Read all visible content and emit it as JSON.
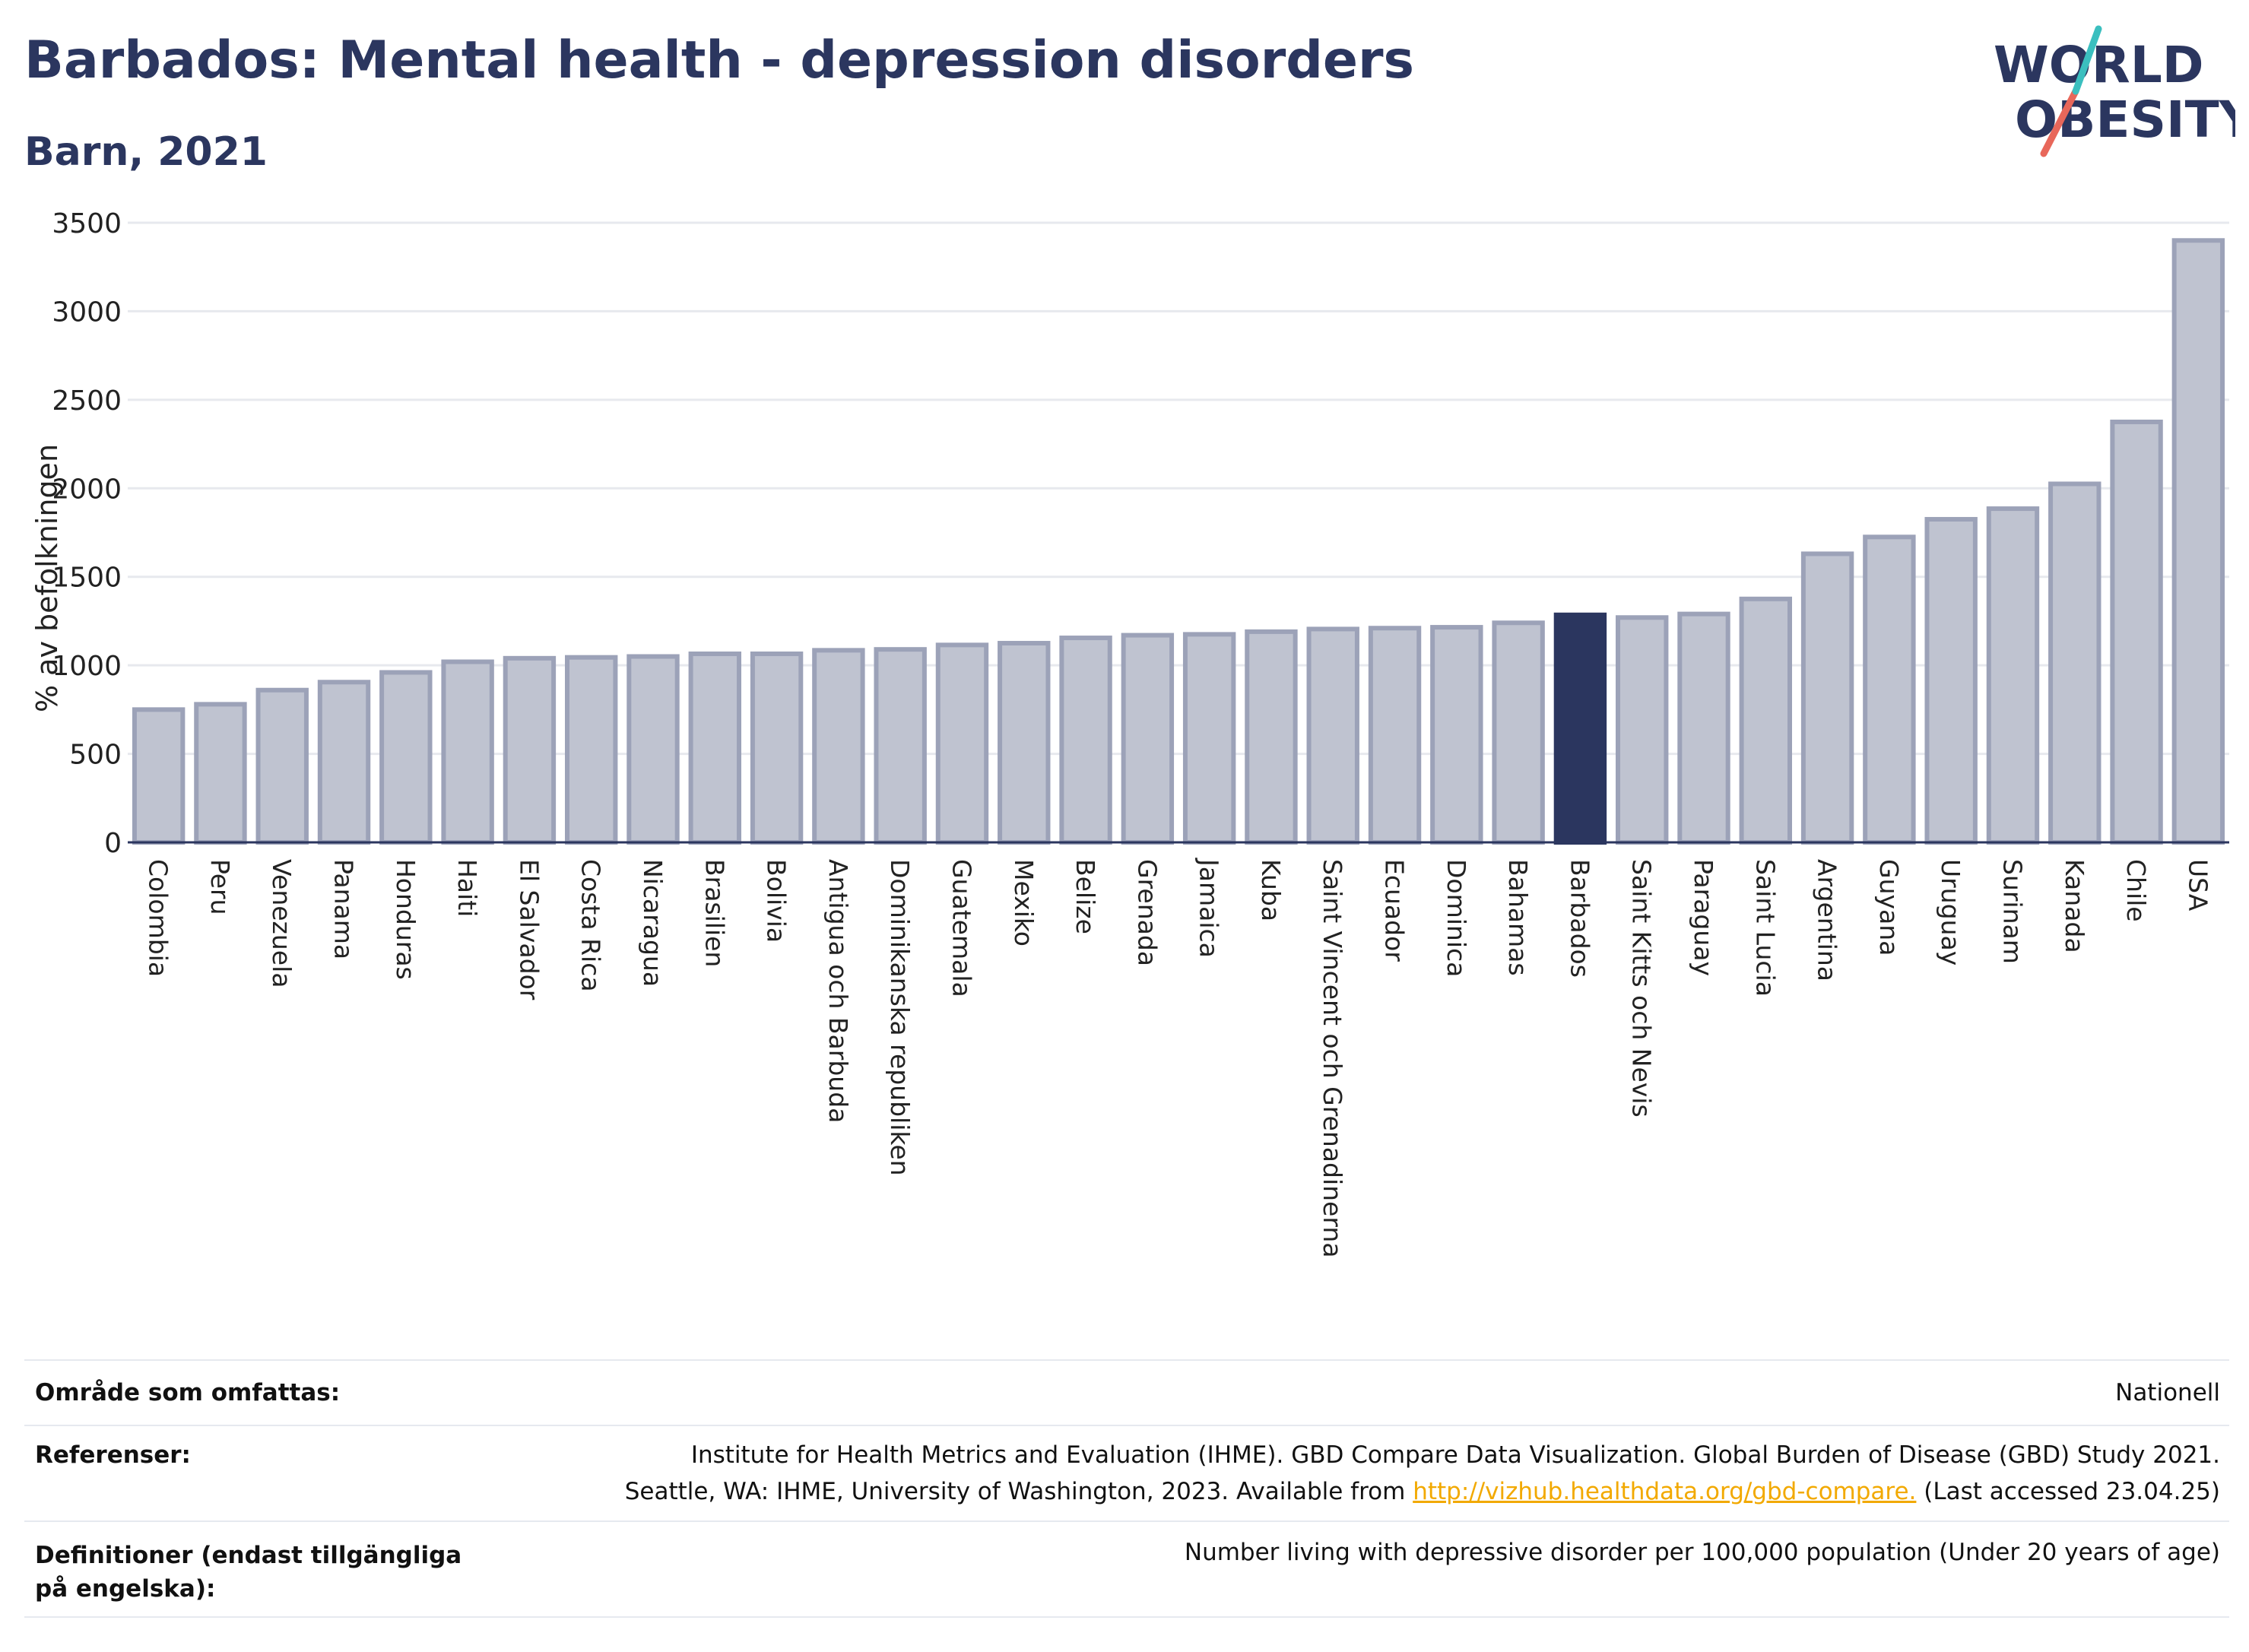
{
  "header": {
    "title": "Barbados: Mental health - depression disorders",
    "subtitle": "Barn, 2021",
    "logo_line1": "WORLD",
    "logo_line2": "OBESITY"
  },
  "colors": {
    "bar": "#bfc3d0",
    "bar_stroke": "#9ca2b8",
    "highlight": "#2b365f",
    "grid": "#e7e9ee",
    "title": "#2b365f",
    "logo_teal": "#3bbfbf",
    "logo_red": "#e8675a",
    "link": "#f2a900"
  },
  "chart_data": {
    "type": "bar",
    "title": "Barbados: Mental health - depression disorders",
    "subtitle": "Barn, 2021",
    "ylabel": "% av befolkningen",
    "xlabel": "",
    "ylim": [
      0,
      3500
    ],
    "yticks": [
      0,
      500,
      1000,
      1500,
      2000,
      2500,
      3000,
      3500
    ],
    "grid": true,
    "highlight": "Barbados",
    "categories": [
      "Colombia",
      "Peru",
      "Venezuela",
      "Panama",
      "Honduras",
      "Haiti",
      "El Salvador",
      "Costa Rica",
      "Nicaragua",
      "Brasilien",
      "Bolivia",
      "Antigua och Barbuda",
      "Dominikanska republiken",
      "Guatemala",
      "Mexiko",
      "Belize",
      "Grenada",
      "Jamaica",
      "Kuba",
      "Saint Vincent och Grenadinerna",
      "Ecuador",
      "Dominica",
      "Bahamas",
      "Barbados",
      "Saint Kitts och Nevis",
      "Paraguay",
      "Saint Lucia",
      "Argentina",
      "Guyana",
      "Uruguay",
      "Surinam",
      "Kanada",
      "Chile",
      "USA"
    ],
    "values": [
      750,
      780,
      860,
      905,
      960,
      1020,
      1040,
      1045,
      1050,
      1065,
      1065,
      1085,
      1090,
      1115,
      1125,
      1155,
      1170,
      1175,
      1190,
      1205,
      1210,
      1215,
      1240,
      1285,
      1270,
      1290,
      1375,
      1630,
      1725,
      1825,
      1885,
      2025,
      2375,
      3400
    ]
  },
  "info": {
    "rows": [
      {
        "key": "Område som omfattas:",
        "value": "Nationell"
      },
      {
        "key": "Referenser:",
        "value_line1": "Institute for Health Metrics and Evaluation (IHME). GBD Compare Data Visualization. Global Burden of Disease (GBD) Study 2021.",
        "value_line2_pre": "Seattle, WA: IHME, University of Washington, 2023. Available from ",
        "link": "http://vizhub.healthdata.org/gbd-compare.",
        "value_line2_post": " (Last accessed 23.04.25)"
      },
      {
        "key": "Definitioner (endast tillgängliga på engelska):",
        "value": "Number living with depressive disorder per 100,000 population (Under 20 years of age)"
      }
    ]
  }
}
